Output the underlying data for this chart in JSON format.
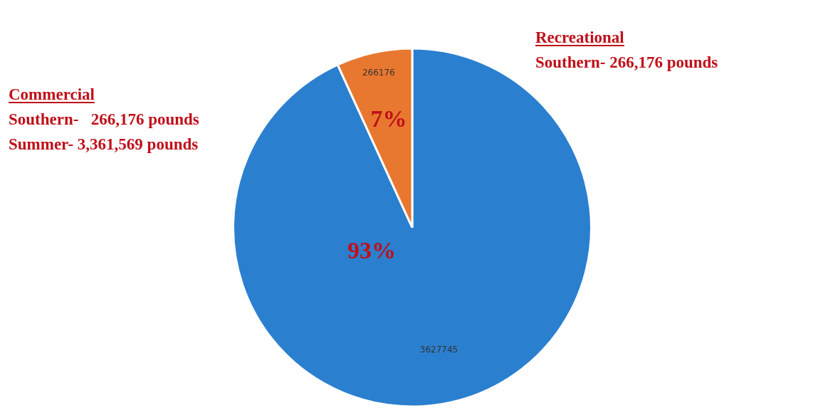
{
  "chart_data": {
    "type": "pie",
    "categories": [
      null,
      null
    ],
    "values": [
      3627745,
      266176
    ],
    "colors": [
      "#2b7fcf",
      "#e8782f"
    ],
    "data_labels": true,
    "legend": false,
    "annotations": [
      "Commercial",
      "Southern-   266,176 pounds",
      "Summer- 3,361,569 pounds",
      "Recreational",
      "Southern- 266,176 pounds",
      "93%",
      "7%"
    ]
  }
}
